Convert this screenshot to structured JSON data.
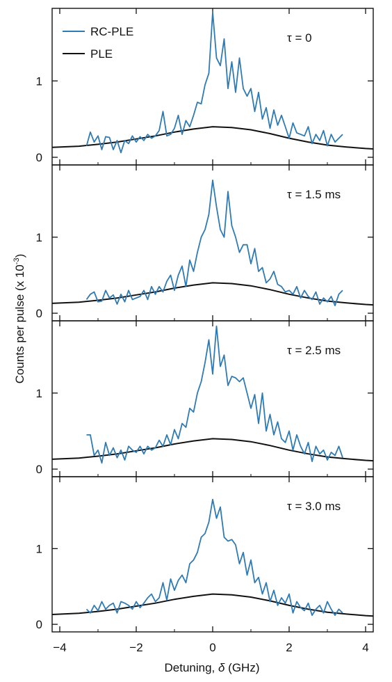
{
  "chart_data": {
    "type": "line",
    "ylabel": "Counts per pulse (x 10",
    "ylabel_sup": "-3",
    "ylabel_end": ")",
    "xlabel_prefix": "Detuning, ",
    "xlabel_symbol": "δ",
    "xlabel_suffix": " (GHz)",
    "xlim": [
      -4.2,
      4.2
    ],
    "ylim": [
      -0.1,
      1.95
    ],
    "xticks": [
      -4,
      -2,
      0,
      2,
      4
    ],
    "xtick_labels": [
      "−4",
      "−2",
      "0",
      "2",
      "4"
    ],
    "yticks": [
      0,
      1
    ],
    "ytick_labels": [
      "0",
      "1"
    ],
    "grid": false,
    "legend_position": "top-left",
    "legend": [
      {
        "name": "RC-PLE",
        "color": "#2e7ab4"
      },
      {
        "name": "PLE",
        "color": "#111111"
      }
    ],
    "colors": {
      "rc_ple": "#2e7ab4",
      "ple": "#111111"
    },
    "ple_curve": {
      "x": [
        -4.2,
        -3.5,
        -3.0,
        -2.5,
        -2.0,
        -1.5,
        -1.0,
        -0.5,
        0.0,
        0.5,
        1.0,
        1.5,
        2.0,
        2.5,
        3.0,
        3.5,
        4.0,
        4.2
      ],
      "y": [
        0.13,
        0.145,
        0.17,
        0.2,
        0.24,
        0.28,
        0.33,
        0.37,
        0.4,
        0.39,
        0.36,
        0.31,
        0.25,
        0.2,
        0.16,
        0.135,
        0.115,
        0.11
      ]
    },
    "panels": [
      {
        "label": "τ = 0",
        "x": [
          -3.3,
          -3.2,
          -3.1,
          -3.0,
          -2.9,
          -2.8,
          -2.7,
          -2.6,
          -2.5,
          -2.4,
          -2.3,
          -2.2,
          -2.1,
          -2.0,
          -1.9,
          -1.8,
          -1.7,
          -1.6,
          -1.5,
          -1.4,
          -1.3,
          -1.2,
          -1.1,
          -1.0,
          -0.9,
          -0.8,
          -0.7,
          -0.6,
          -0.5,
          -0.4,
          -0.3,
          -0.2,
          -0.1,
          0.0,
          0.1,
          0.2,
          0.3,
          0.4,
          0.5,
          0.6,
          0.7,
          0.8,
          0.9,
          1.0,
          1.1,
          1.2,
          1.3,
          1.4,
          1.5,
          1.6,
          1.7,
          1.8,
          1.9,
          2.0,
          2.1,
          2.2,
          2.3,
          2.4,
          2.5,
          2.6,
          2.7,
          2.8,
          2.9,
          3.0,
          3.1,
          3.2,
          3.3,
          3.4
        ],
        "y": [
          0.15,
          0.33,
          0.2,
          0.28,
          0.1,
          0.27,
          0.26,
          0.1,
          0.22,
          0.06,
          0.22,
          0.18,
          0.28,
          0.2,
          0.27,
          0.22,
          0.3,
          0.25,
          0.28,
          0.35,
          0.6,
          0.28,
          0.3,
          0.38,
          0.55,
          0.3,
          0.48,
          0.4,
          0.55,
          0.72,
          0.7,
          0.95,
          1.1,
          1.9,
          1.3,
          1.2,
          1.55,
          0.9,
          1.25,
          0.85,
          1.3,
          0.9,
          0.8,
          0.9,
          0.6,
          0.85,
          0.5,
          0.65,
          0.38,
          0.62,
          0.42,
          0.55,
          0.4,
          0.25,
          0.45,
          0.32,
          0.3,
          0.28,
          0.4,
          0.18,
          0.3,
          0.22,
          0.35,
          0.15,
          0.3,
          0.2,
          0.25,
          0.3
        ]
      },
      {
        "label": "τ = 1.5 ms",
        "x": [
          -3.3,
          -3.2,
          -3.1,
          -3.0,
          -2.9,
          -2.8,
          -2.7,
          -2.6,
          -2.5,
          -2.4,
          -2.3,
          -2.2,
          -2.1,
          -2.0,
          -1.9,
          -1.8,
          -1.7,
          -1.6,
          -1.5,
          -1.4,
          -1.3,
          -1.2,
          -1.1,
          -1.0,
          -0.9,
          -0.8,
          -0.7,
          -0.6,
          -0.5,
          -0.4,
          -0.3,
          -0.2,
          -0.1,
          0.0,
          0.1,
          0.2,
          0.3,
          0.4,
          0.5,
          0.6,
          0.7,
          0.8,
          0.9,
          1.0,
          1.1,
          1.2,
          1.3,
          1.4,
          1.5,
          1.6,
          1.7,
          1.8,
          1.9,
          2.0,
          2.1,
          2.2,
          2.3,
          2.4,
          2.5,
          2.6,
          2.7,
          2.8,
          2.9,
          3.0,
          3.1,
          3.2,
          3.3,
          3.4
        ],
        "y": [
          0.18,
          0.25,
          0.28,
          0.15,
          0.16,
          0.3,
          0.2,
          0.24,
          0.12,
          0.25,
          0.15,
          0.3,
          0.18,
          0.2,
          0.22,
          0.3,
          0.18,
          0.35,
          0.25,
          0.35,
          0.28,
          0.42,
          0.5,
          0.3,
          0.5,
          0.62,
          0.35,
          0.7,
          0.55,
          0.8,
          1.0,
          1.1,
          1.3,
          1.75,
          1.4,
          1.1,
          1.0,
          1.6,
          1.15,
          1.0,
          0.8,
          0.9,
          0.9,
          0.65,
          0.85,
          0.55,
          0.6,
          0.4,
          0.45,
          0.55,
          0.38,
          0.35,
          0.28,
          0.3,
          0.25,
          0.35,
          0.2,
          0.3,
          0.22,
          0.18,
          0.28,
          0.12,
          0.2,
          0.15,
          0.22,
          0.1,
          0.25,
          0.3
        ]
      },
      {
        "label": "τ = 2.5 ms",
        "x": [
          -3.3,
          -3.2,
          -3.1,
          -3.0,
          -2.9,
          -2.8,
          -2.7,
          -2.6,
          -2.5,
          -2.4,
          -2.3,
          -2.2,
          -2.1,
          -2.0,
          -1.9,
          -1.8,
          -1.7,
          -1.6,
          -1.5,
          -1.4,
          -1.3,
          -1.2,
          -1.1,
          -1.0,
          -0.9,
          -0.8,
          -0.7,
          -0.6,
          -0.5,
          -0.4,
          -0.3,
          -0.2,
          -0.1,
          0.0,
          0.1,
          0.2,
          0.3,
          0.4,
          0.5,
          0.6,
          0.7,
          0.8,
          0.9,
          1.0,
          1.1,
          1.2,
          1.3,
          1.4,
          1.5,
          1.6,
          1.7,
          1.8,
          1.9,
          2.0,
          2.1,
          2.2,
          2.3,
          2.4,
          2.5,
          2.6,
          2.7,
          2.8,
          2.9,
          3.0,
          3.1,
          3.2,
          3.3,
          3.4
        ],
        "y": [
          0.45,
          0.45,
          0.18,
          0.25,
          0.08,
          0.35,
          0.18,
          0.28,
          0.15,
          0.25,
          0.12,
          0.3,
          0.25,
          0.22,
          0.3,
          0.2,
          0.3,
          0.25,
          0.28,
          0.38,
          0.3,
          0.45,
          0.32,
          0.52,
          0.4,
          0.6,
          0.55,
          0.8,
          0.75,
          1.0,
          1.15,
          1.4,
          1.7,
          1.25,
          1.88,
          1.35,
          1.5,
          1.1,
          1.22,
          1.2,
          1.15,
          1.2,
          1.0,
          0.8,
          0.98,
          0.6,
          1.0,
          0.5,
          0.72,
          0.45,
          0.62,
          0.4,
          0.35,
          0.5,
          0.25,
          0.45,
          0.3,
          0.2,
          0.35,
          0.1,
          0.3,
          0.2,
          0.25,
          0.12,
          0.22,
          0.18,
          0.3,
          0.15
        ]
      },
      {
        "label": "τ = 3.0 ms",
        "x": [
          -3.3,
          -3.2,
          -3.1,
          -3.0,
          -2.9,
          -2.8,
          -2.7,
          -2.6,
          -2.5,
          -2.4,
          -2.3,
          -2.2,
          -2.1,
          -2.0,
          -1.9,
          -1.8,
          -1.7,
          -1.6,
          -1.5,
          -1.4,
          -1.3,
          -1.2,
          -1.1,
          -1.0,
          -0.9,
          -0.8,
          -0.7,
          -0.6,
          -0.5,
          -0.4,
          -0.3,
          -0.2,
          -0.1,
          0.0,
          0.1,
          0.2,
          0.3,
          0.4,
          0.5,
          0.6,
          0.7,
          0.8,
          0.9,
          1.0,
          1.1,
          1.2,
          1.3,
          1.4,
          1.5,
          1.6,
          1.7,
          1.8,
          1.9,
          2.0,
          2.1,
          2.2,
          2.3,
          2.4,
          2.5,
          2.6,
          2.7,
          2.8,
          2.9,
          3.0,
          3.1,
          3.2,
          3.3,
          3.4
        ],
        "y": [
          0.2,
          0.15,
          0.25,
          0.18,
          0.3,
          0.2,
          0.25,
          0.28,
          0.15,
          0.3,
          0.28,
          0.25,
          0.2,
          0.3,
          0.22,
          0.28,
          0.35,
          0.4,
          0.3,
          0.35,
          0.55,
          0.32,
          0.6,
          0.45,
          0.58,
          0.65,
          0.55,
          0.8,
          0.85,
          0.95,
          1.15,
          1.2,
          1.35,
          1.65,
          1.4,
          1.55,
          1.15,
          1.1,
          1.12,
          1.05,
          0.8,
          0.95,
          0.65,
          0.85,
          0.55,
          0.62,
          0.4,
          0.55,
          0.3,
          0.45,
          0.25,
          0.35,
          0.28,
          0.4,
          0.15,
          0.3,
          0.22,
          0.18,
          0.28,
          0.12,
          0.2,
          0.25,
          0.15,
          0.3,
          0.2,
          0.12,
          0.2,
          0.15
        ]
      }
    ]
  }
}
